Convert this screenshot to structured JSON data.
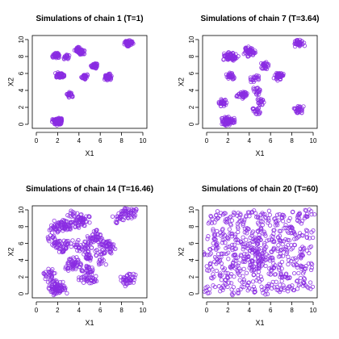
{
  "figure": {
    "point_color": "#8a2be2"
  },
  "chart_data": [
    {
      "type": "scatter",
      "title": "Simulations of chain 1 (T=1)",
      "xlabel": "X1",
      "ylabel": "X2",
      "xlim": [
        0,
        10
      ],
      "ylim": [
        0,
        10
      ],
      "xticks": [
        "0",
        "2",
        "4",
        "6",
        "8",
        "10"
      ],
      "yticks": [
        "0",
        "2",
        "4",
        "6",
        "8",
        "10"
      ],
      "points": [
        [
          1.8,
          0.3
        ],
        [
          2.0,
          0.4
        ],
        [
          2.2,
          0.2
        ],
        [
          1.9,
          0.5
        ],
        [
          2.1,
          0.3
        ],
        [
          1.7,
          0.4
        ],
        [
          2.3,
          0.5
        ],
        [
          2.0,
          0.1
        ],
        [
          1.9,
          0.2
        ],
        [
          2.2,
          0.6
        ],
        [
          1.8,
          8.1
        ],
        [
          1.9,
          8.2
        ],
        [
          2.0,
          8.0
        ],
        [
          1.7,
          8.1
        ],
        [
          2.0,
          5.8
        ],
        [
          2.2,
          5.9
        ],
        [
          2.4,
          5.7
        ],
        [
          2.3,
          5.8
        ],
        [
          2.1,
          5.7
        ],
        [
          2.8,
          7.9
        ],
        [
          2.9,
          8.0
        ],
        [
          3.1,
          3.5
        ],
        [
          3.2,
          3.4
        ],
        [
          3.0,
          3.6
        ],
        [
          3.8,
          8.8
        ],
        [
          4.0,
          8.9
        ],
        [
          3.9,
          8.7
        ],
        [
          4.1,
          8.6
        ],
        [
          4.2,
          8.4
        ],
        [
          4.3,
          8.5
        ],
        [
          4.5,
          5.6
        ],
        [
          4.6,
          5.7
        ],
        [
          4.4,
          5.5
        ],
        [
          5.4,
          6.9
        ],
        [
          5.5,
          7.0
        ],
        [
          5.6,
          6.8
        ],
        [
          5.3,
          6.9
        ],
        [
          6.7,
          5.6
        ],
        [
          6.8,
          5.8
        ],
        [
          6.9,
          5.7
        ],
        [
          6.6,
          5.5
        ],
        [
          6.8,
          5.4
        ],
        [
          8.4,
          9.6
        ],
        [
          8.6,
          9.7
        ],
        [
          8.8,
          9.5
        ],
        [
          8.5,
          9.4
        ],
        [
          8.7,
          9.6
        ],
        [
          8.9,
          9.7
        ]
      ]
    },
    {
      "type": "scatter",
      "title": "Simulations of chain 7 (T=3.64)",
      "xlabel": "X1",
      "ylabel": "X2",
      "xlim": [
        0,
        10
      ],
      "ylim": [
        0,
        10
      ],
      "xticks": [
        "0",
        "2",
        "4",
        "6",
        "8",
        "10"
      ],
      "yticks": [
        "0",
        "2",
        "4",
        "6",
        "8",
        "10"
      ],
      "points": [
        [
          1.9,
          0.3
        ],
        [
          2.1,
          0.4
        ],
        [
          2.3,
          0.2
        ],
        [
          1.7,
          0.5
        ],
        [
          2.0,
          0.6
        ],
        [
          1.6,
          0.2
        ],
        [
          2.4,
          0.5
        ],
        [
          1.8,
          0.1
        ],
        [
          1.4,
          2.6
        ],
        [
          1.6,
          2.4
        ],
        [
          1.5,
          2.7
        ],
        [
          1.9,
          8.1
        ],
        [
          2.1,
          8.0
        ],
        [
          2.3,
          7.9
        ],
        [
          2.5,
          8.1
        ],
        [
          2.7,
          7.8
        ],
        [
          1.8,
          7.9
        ],
        [
          2.2,
          8.2
        ],
        [
          2.1,
          5.8
        ],
        [
          2.3,
          5.6
        ],
        [
          2.2,
          5.9
        ],
        [
          3.3,
          3.5
        ],
        [
          3.5,
          3.6
        ],
        [
          3.1,
          3.4
        ],
        [
          3.4,
          3.3
        ],
        [
          3.8,
          8.6
        ],
        [
          4.0,
          8.9
        ],
        [
          4.2,
          8.5
        ],
        [
          4.1,
          8.3
        ],
        [
          3.9,
          8.8
        ],
        [
          4.3,
          8.7
        ],
        [
          4.6,
          4.0
        ],
        [
          4.8,
          3.8
        ],
        [
          4.6,
          1.7
        ],
        [
          4.8,
          1.5
        ],
        [
          4.4,
          5.3
        ],
        [
          4.6,
          5.5
        ],
        [
          5.0,
          2.8
        ],
        [
          5.1,
          2.6
        ],
        [
          5.4,
          6.9
        ],
        [
          5.6,
          7.1
        ],
        [
          5.5,
          6.7
        ],
        [
          6.6,
          5.7
        ],
        [
          6.8,
          5.9
        ],
        [
          6.7,
          5.4
        ],
        [
          6.9,
          5.6
        ],
        [
          7.0,
          5.8
        ],
        [
          8.5,
          9.6
        ],
        [
          8.7,
          9.7
        ],
        [
          8.9,
          9.5
        ],
        [
          8.6,
          9.4
        ],
        [
          8.5,
          1.8
        ],
        [
          8.7,
          1.6
        ],
        [
          8.8,
          1.9
        ]
      ]
    },
    {
      "type": "scatter",
      "title": "Simulations of chain 14 (T=16.46)",
      "xlabel": "X1",
      "ylabel": "X2",
      "xlim": [
        0,
        10
      ],
      "ylim": [
        0,
        10
      ],
      "xticks": [
        "0",
        "2",
        "4",
        "6",
        "8",
        "10"
      ],
      "yticks": [
        "0",
        "2",
        "4",
        "6",
        "8",
        "10"
      ],
      "points": [
        [
          1.5,
          0.4
        ],
        [
          1.9,
          0.2
        ],
        [
          2.2,
          0.6
        ],
        [
          2.5,
          0.3
        ],
        [
          1.8,
          0.8
        ],
        [
          2.3,
          1.0
        ],
        [
          1.6,
          1.2
        ],
        [
          2.0,
          0.5
        ],
        [
          1.1,
          2.2
        ],
        [
          1.4,
          2.6
        ],
        [
          1.2,
          1.8
        ],
        [
          1.6,
          8.0
        ],
        [
          2.0,
          8.3
        ],
        [
          2.4,
          7.9
        ],
        [
          2.8,
          8.1
        ],
        [
          1.8,
          7.6
        ],
        [
          2.6,
          8.4
        ],
        [
          3.0,
          7.8
        ],
        [
          2.0,
          5.8
        ],
        [
          2.4,
          5.6
        ],
        [
          2.6,
          6.0
        ],
        [
          2.2,
          5.3
        ],
        [
          1.8,
          6.2
        ],
        [
          3.3,
          3.4
        ],
        [
          3.6,
          3.7
        ],
        [
          3.1,
          3.1
        ],
        [
          3.8,
          3.2
        ],
        [
          3.4,
          4.0
        ],
        [
          3.8,
          8.6
        ],
        [
          4.2,
          8.8
        ],
        [
          4.0,
          9.2
        ],
        [
          4.4,
          8.4
        ],
        [
          3.6,
          8.2
        ],
        [
          4.6,
          8.9
        ],
        [
          4.5,
          5.5
        ],
        [
          4.8,
          5.8
        ],
        [
          4.2,
          5.2
        ],
        [
          4.7,
          4.6
        ],
        [
          5.0,
          4.2
        ],
        [
          4.4,
          2.0
        ],
        [
          4.8,
          1.7
        ],
        [
          5.2,
          2.3
        ],
        [
          4.6,
          2.8
        ],
        [
          5.5,
          1.5
        ],
        [
          5.0,
          3.0
        ],
        [
          5.4,
          6.8
        ],
        [
          5.6,
          7.2
        ],
        [
          5.8,
          6.6
        ],
        [
          5.2,
          6.5
        ],
        [
          6.5,
          5.6
        ],
        [
          6.9,
          5.9
        ],
        [
          6.7,
          5.2
        ],
        [
          7.0,
          5.6
        ],
        [
          6.3,
          6.0
        ],
        [
          8.3,
          9.5
        ],
        [
          8.6,
          9.8
        ],
        [
          8.9,
          9.3
        ],
        [
          8.1,
          9.2
        ],
        [
          9.2,
          9.7
        ],
        [
          8.3,
          1.9
        ],
        [
          8.7,
          1.6
        ],
        [
          9.0,
          2.0
        ],
        [
          8.5,
          1.3
        ],
        [
          1.5,
          6.6
        ],
        [
          5.8,
          4.9
        ],
        [
          3.6,
          6.0
        ],
        [
          6.2,
          3.8
        ],
        [
          3.2,
          9.5
        ],
        [
          7.5,
          8.8
        ]
      ]
    },
    {
      "type": "scatter",
      "title": "Simulations of chain 20 (T=60)",
      "xlabel": "X1",
      "ylabel": "X2",
      "xlim": [
        0,
        10
      ],
      "ylim": [
        0,
        10
      ],
      "xticks": [
        "0",
        "2",
        "4",
        "6",
        "8",
        "10"
      ],
      "yticks": [
        "0",
        "2",
        "4",
        "6",
        "8",
        "10"
      ],
      "points": [
        [
          0.3,
          0.5
        ],
        [
          0.9,
          2.1
        ],
        [
          1.5,
          0.8
        ],
        [
          2.2,
          1.6
        ],
        [
          2.8,
          0.3
        ],
        [
          3.5,
          1.2
        ],
        [
          4.1,
          0.6
        ],
        [
          4.8,
          1.9
        ],
        [
          5.4,
          0.4
        ],
        [
          6.1,
          1.1
        ],
        [
          6.8,
          0.7
        ],
        [
          7.4,
          1.8
        ],
        [
          8.1,
          0.5
        ],
        [
          8.8,
          1.4
        ],
        [
          9.5,
          0.9
        ],
        [
          0.5,
          3.2
        ],
        [
          1.2,
          3.9
        ],
        [
          1.9,
          2.8
        ],
        [
          2.6,
          3.5
        ],
        [
          3.3,
          2.6
        ],
        [
          4.0,
          3.8
        ],
        [
          4.7,
          2.9
        ],
        [
          5.3,
          3.6
        ],
        [
          6.0,
          2.7
        ],
        [
          6.7,
          3.4
        ],
        [
          7.3,
          2.5
        ],
        [
          8.0,
          3.7
        ],
        [
          8.7,
          2.9
        ],
        [
          9.4,
          3.3
        ],
        [
          0.2,
          5.0
        ],
        [
          0.8,
          5.7
        ],
        [
          1.6,
          4.6
        ],
        [
          2.3,
          5.4
        ],
        [
          3.0,
          4.4
        ],
        [
          3.7,
          5.6
        ],
        [
          4.4,
          4.7
        ],
        [
          5.1,
          5.5
        ],
        [
          5.8,
          4.5
        ],
        [
          6.5,
          5.3
        ],
        [
          7.2,
          4.8
        ],
        [
          7.9,
          5.6
        ],
        [
          8.6,
          4.6
        ],
        [
          9.3,
          5.2
        ],
        [
          0.4,
          6.9
        ],
        [
          1.1,
          7.5
        ],
        [
          1.8,
          6.5
        ],
        [
          2.5,
          7.3
        ],
        [
          3.2,
          6.4
        ],
        [
          3.9,
          7.6
        ],
        [
          4.6,
          6.7
        ],
        [
          5.2,
          7.4
        ],
        [
          5.9,
          6.5
        ],
        [
          6.6,
          7.2
        ],
        [
          7.3,
          6.3
        ],
        [
          8.0,
          7.5
        ],
        [
          8.7,
          6.8
        ],
        [
          9.6,
          7.1
        ],
        [
          0.6,
          8.8
        ],
        [
          1.3,
          9.5
        ],
        [
          2.0,
          8.6
        ],
        [
          2.7,
          9.3
        ],
        [
          3.4,
          8.4
        ],
        [
          4.1,
          9.6
        ],
        [
          4.8,
          8.7
        ],
        [
          5.5,
          9.4
        ],
        [
          6.2,
          8.5
        ],
        [
          6.9,
          9.2
        ],
        [
          7.6,
          8.3
        ],
        [
          8.3,
          9.5
        ],
        [
          9.0,
          8.8
        ],
        [
          9.7,
          9.6
        ],
        [
          4.3,
          5.1
        ],
        [
          4.9,
          6.2
        ],
        [
          5.6,
          4.1
        ],
        [
          3.6,
          4.3
        ],
        [
          4.5,
          3.3
        ],
        [
          5.0,
          4.9
        ]
      ]
    }
  ]
}
